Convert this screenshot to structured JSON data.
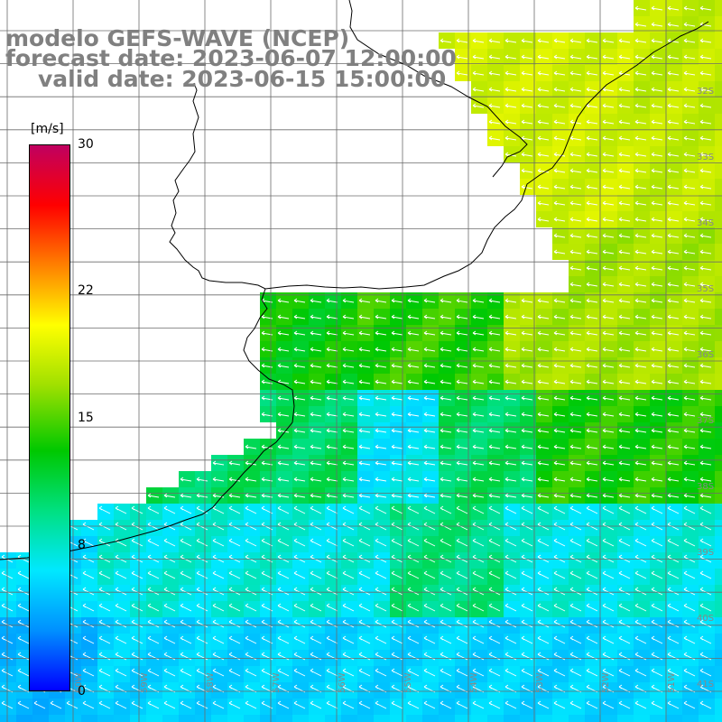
{
  "title": {
    "line1": "modelo GEFS-WAVE (NCEP)",
    "line2": "forecast date: 2023-06-07 12:00:00",
    "line3": "valid date: 2023-06-15 15:00:00"
  },
  "colorbar": {
    "unit": "[m/s]",
    "ticks": [
      {
        "label": "30",
        "value": 30
      },
      {
        "label": "22",
        "value": 22
      },
      {
        "label": "15",
        "value": 15
      },
      {
        "label": "8",
        "value": 8
      },
      {
        "label": "0",
        "value": 0
      }
    ],
    "colors": [
      "#0000ff",
      "#0090ff",
      "#00e8ff",
      "#00e080",
      "#00c800",
      "#a0e000",
      "#ffff00",
      "#ff8000",
      "#ff0000",
      "#c00060"
    ]
  },
  "latitude_labels": [
    "32S",
    "33S",
    "34S",
    "35S",
    "36S",
    "37S",
    "38S",
    "39S",
    "40S",
    "41S"
  ],
  "longitude_labels": [
    "60W",
    "59W",
    "58W",
    "57W",
    "56W",
    "55W",
    "54W",
    "53W",
    "52W",
    "51W"
  ],
  "colors": {
    "land": "#ffffff",
    "coast": "#000000",
    "grid": "#6b6b6b",
    "arrows": "#ffffff",
    "title_text": "#808080"
  }
}
